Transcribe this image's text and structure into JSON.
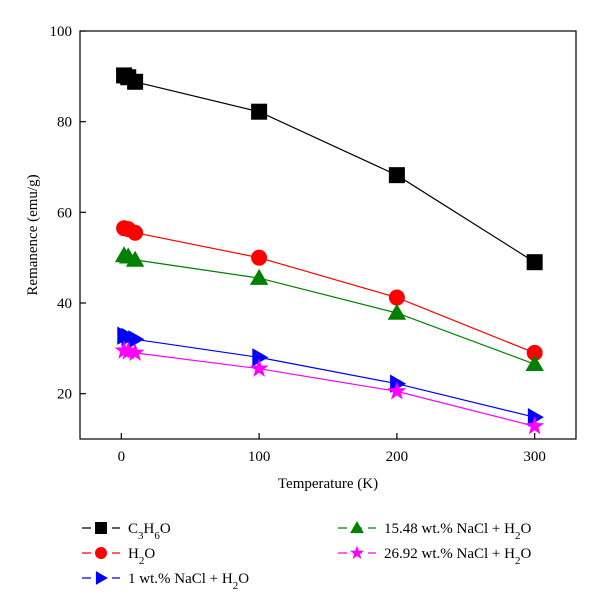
{
  "chart_data": {
    "type": "line",
    "xlabel": "Temperature (K)",
    "ylabel": "Remanence (emu/g)",
    "xlim": [
      -30,
      330
    ],
    "ylim": [
      10,
      100
    ],
    "xticks": [
      0,
      100,
      200,
      300
    ],
    "yticks": [
      20,
      40,
      60,
      80,
      100
    ],
    "grid": false,
    "legend_placement": "bottom",
    "series": [
      {
        "name_parts": [
          [
            "C",
            false
          ],
          [
            "3",
            true
          ],
          [
            "H",
            false
          ],
          [
            "6",
            true
          ],
          [
            "O",
            false
          ]
        ],
        "marker": "square",
        "color": "#000000",
        "x": [
          2,
          5,
          10,
          100,
          200,
          300
        ],
        "y": [
          90.2,
          89.8,
          88.8,
          82.2,
          68.2,
          49.0
        ]
      },
      {
        "name_parts": [
          [
            "H",
            false
          ],
          [
            "2",
            true
          ],
          [
            "O",
            false
          ]
        ],
        "marker": "circle",
        "color": "#ff0000",
        "x": [
          2,
          5,
          10,
          100,
          200,
          300
        ],
        "y": [
          56.5,
          56.3,
          55.5,
          50.0,
          41.2,
          29.0
        ]
      },
      {
        "name_parts": [
          [
            "1 wt.% NaCl + H",
            false
          ],
          [
            "2",
            true
          ],
          [
            "O",
            false
          ]
        ],
        "marker": "triangle-right",
        "color": "#0000ff",
        "x": [
          2,
          5,
          10,
          100,
          200,
          300
        ],
        "y": [
          32.8,
          32.5,
          32.0,
          28.0,
          22.2,
          14.8
        ]
      },
      {
        "name_parts": [
          [
            "15.48 wt.% NaCl + H",
            false
          ],
          [
            "2",
            true
          ],
          [
            "O",
            false
          ]
        ],
        "marker": "triangle-up",
        "color": "#008000",
        "x": [
          2,
          5,
          10,
          100,
          200,
          300
        ],
        "y": [
          50.5,
          50.2,
          49.5,
          45.5,
          37.8,
          26.5
        ]
      },
      {
        "name_parts": [
          [
            "26.92 wt.% NaCl + H",
            false
          ],
          [
            "2",
            true
          ],
          [
            "O",
            false
          ]
        ],
        "marker": "star",
        "color": "#ff00ff",
        "x": [
          2,
          5,
          10,
          100,
          200,
          300
        ],
        "y": [
          29.5,
          29.3,
          29.0,
          25.5,
          20.5,
          12.8
        ]
      }
    ]
  }
}
